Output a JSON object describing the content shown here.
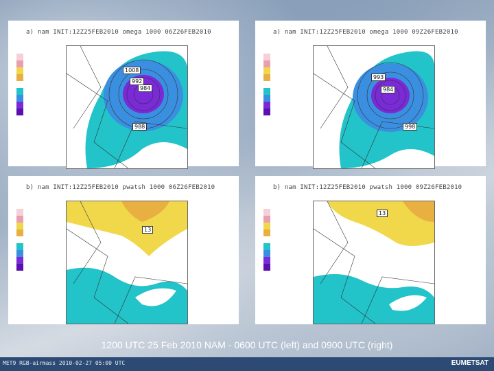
{
  "panels": [
    {
      "title": "a) nam  INIT:12Z25FEB2010 omega  1000  06Z26FEB2010",
      "labels": [
        "1008",
        "992",
        "984",
        "988"
      ]
    },
    {
      "title": "a) nam  INIT:12Z25FEB2010 omega  1000  09Z26FEB2010",
      "labels": [
        "993",
        "984",
        "998"
      ]
    },
    {
      "title": "b) nam  INIT:12Z25FEB2010 pwatsh  1000  06Z26FEB2010",
      "labels": [
        "13"
      ]
    },
    {
      "title": "b) nam  INIT:12Z25FEB2010 pwatsh  1000  09Z26FEB2010",
      "labels": [
        "13"
      ]
    }
  ],
  "caption": "1200 UTC 25 Feb 2010 NAM  - 0600 UTC (left) and 0900 UTC (right)",
  "footer": {
    "left": "MET9 RGB-airmass 2010-02-27 05:00 UTC",
    "right": "EUMETSAT"
  },
  "colors": {
    "cyan": "#22c3c9",
    "purple": "#7a2ad6",
    "blue": "#3a8fe0",
    "yellow": "#f0d84a",
    "orange": "#e8b040"
  }
}
